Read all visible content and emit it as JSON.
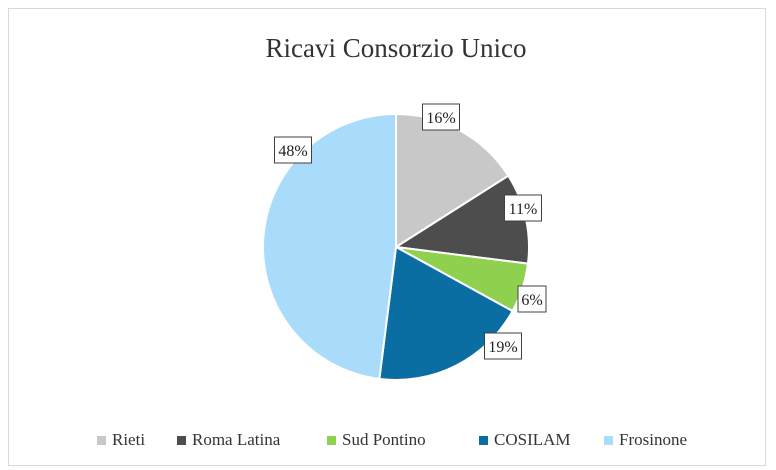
{
  "chart_data": {
    "type": "pie",
    "title": "Ricavi Consorzio Unico",
    "categories": [
      "Rieti",
      "Roma Latina",
      "Sud Pontino",
      "COSILAM",
      "Frosinone"
    ],
    "values": [
      16,
      11,
      6,
      19,
      48
    ],
    "labels": [
      "16%",
      "11%",
      "6%",
      "19%",
      "48%"
    ],
    "colors": [
      "#c8c8c8",
      "#4d4d4d",
      "#8fd14f",
      "#0b6ea3",
      "#a9dcfb"
    ],
    "legend": "bottom",
    "start_angle_deg": 0,
    "direction": "clockwise"
  }
}
